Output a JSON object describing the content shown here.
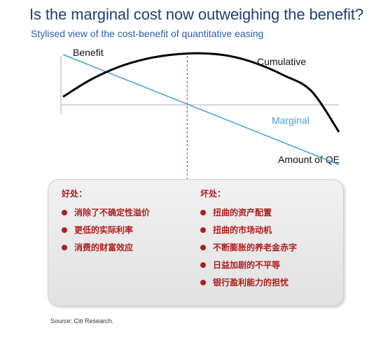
{
  "title": "Is the marginal cost now outweighing the benefit?",
  "subtitle": "Stylised view of the cost-benefit of quantitative easing",
  "chart_data": {
    "type": "line",
    "xlabel": "Amount of QE",
    "ylabel": "Benefit",
    "grid": false,
    "xlim": [
      0,
      100
    ],
    "ylim": [
      -100,
      100
    ],
    "series": [
      {
        "name": "Cumulative",
        "color": "#000000",
        "x": [
          0,
          10,
          20,
          30,
          40,
          50,
          60,
          70,
          80,
          90,
          100
        ],
        "y": [
          13,
          40,
          60,
          73,
          80,
          82,
          78,
          66,
          47,
          22,
          -43
        ]
      },
      {
        "name": "Marginal",
        "color": "#46a0d2",
        "x": [
          0,
          100
        ],
        "y": [
          80,
          -95
        ]
      }
    ],
    "divider": {
      "x": 45,
      "color": "#cc2222",
      "style": "dashed"
    }
  },
  "panel": {
    "left": {
      "title": "好处：",
      "items": [
        "消除了不确定性溢价",
        "更低的实际利率",
        "消费的财富效应"
      ]
    },
    "right": {
      "title": "坏处：",
      "items": [
        "扭曲的资产配置",
        "扭曲的市场动机",
        "不断膨胀的养老金赤字",
        "日益加剧的不平等",
        "银行盈利能力的担忧"
      ]
    },
    "bullet_color": "#b01c1c"
  },
  "source": "Source: Citi Research."
}
